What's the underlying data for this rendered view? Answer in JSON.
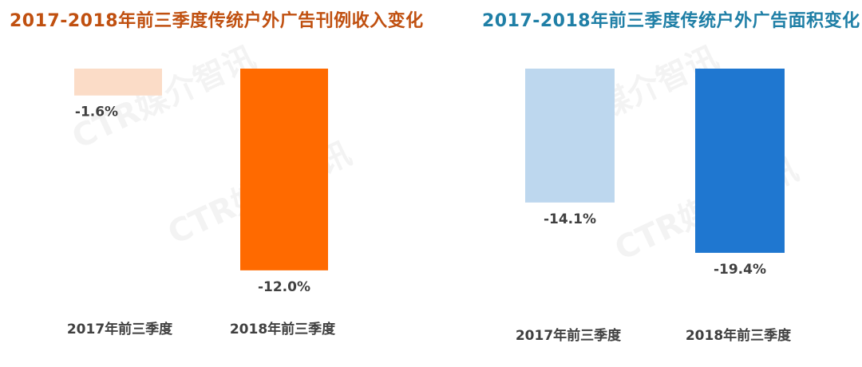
{
  "watermark": "CTR媒介智讯",
  "chart_data": [
    {
      "type": "bar",
      "title": "2017-2018年前三季度传统户外广告刊例收入变化",
      "title_color": "#C05010",
      "categories": [
        "2017年前三季度",
        "2018年前三季度"
      ],
      "values": [
        -1.6,
        -12.0
      ],
      "value_labels": [
        "-1.6%",
        "-12.0%"
      ],
      "colors": [
        "#FBDCC7",
        "#FF6A00"
      ],
      "ylim": [
        -14,
        0
      ],
      "grid": false,
      "legend": "none"
    },
    {
      "type": "bar",
      "title": "2017-2018年前三季度传统户外广告面积变化",
      "title_color": "#1F7FA6",
      "categories": [
        "2017年前三季度",
        "2018年前三季度"
      ],
      "values": [
        -14.1,
        -19.4
      ],
      "value_labels": [
        "-14.1%",
        "-19.4%"
      ],
      "colors": [
        "#BDD7EE",
        "#1F77D0"
      ],
      "ylim": [
        -20.5,
        0
      ],
      "grid": false,
      "legend": "none"
    }
  ]
}
